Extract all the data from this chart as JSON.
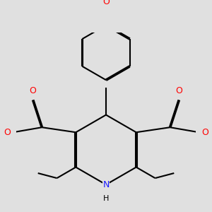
{
  "bg_color": "#e0e0e0",
  "line_color": "#000000",
  "oxygen_color": "#ff0000",
  "nitrogen_color": "#1a1aff",
  "bond_width": 1.5,
  "dbo": 0.012,
  "figsize": [
    3.0,
    3.0
  ],
  "dpi": 100,
  "xlim": [
    -1.8,
    1.8
  ],
  "ylim": [
    -1.8,
    1.8
  ]
}
